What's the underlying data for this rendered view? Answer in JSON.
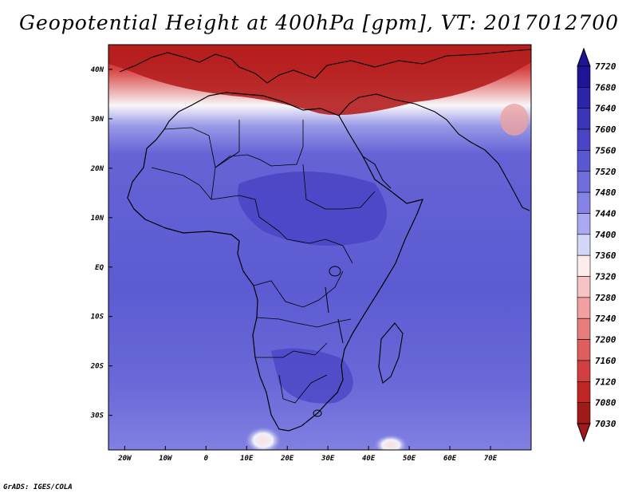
{
  "title": "Geopotential Height at 400hPa [gpm], VT: 2017012700",
  "credit": "GrADS: IGES/COLA",
  "map": {
    "lon_range": [
      -24,
      80
    ],
    "lat_range": [
      -37,
      45
    ],
    "x_ticks": [
      "20W",
      "10W",
      "0",
      "10E",
      "20E",
      "30E",
      "40E",
      "50E",
      "60E",
      "70E"
    ],
    "x_tick_values": [
      -20,
      -10,
      0,
      10,
      20,
      30,
      40,
      50,
      60,
      70
    ],
    "y_ticks": [
      "40N",
      "30N",
      "20N",
      "10N",
      "EQ",
      "10S",
      "20S",
      "30S"
    ],
    "y_tick_values": [
      40,
      30,
      20,
      10,
      0,
      -10,
      -20,
      -30
    ]
  },
  "colorbar": {
    "labels_top_to_bottom": [
      "7720",
      "7680",
      "7640",
      "7600",
      "7560",
      "7520",
      "7480",
      "7440",
      "7400",
      "7360",
      "7320",
      "7280",
      "7240",
      "7200",
      "7160",
      "7120",
      "7080",
      "7030"
    ],
    "colors_top_to_bottom": [
      "#1e1496",
      "#2c25a8",
      "#3b35b8",
      "#4b45c6",
      "#5a58d1",
      "#6e6ddb",
      "#8584e6",
      "#a8a9ee",
      "#d4d6f8",
      "#fcecec",
      "#f6c4c4",
      "#f0a0a0",
      "#e77e7e",
      "#de5e5e",
      "#d14040",
      "#c02626",
      "#a11a1a"
    ]
  },
  "legend_colors": {
    "deep_blue": "#4a44c4",
    "mid_blue": "#5c5bd2",
    "light_blue": "#9a9ae8",
    "white": "#f8f6f8",
    "light_red": "#eba3a3",
    "dark_red": "#b51e1e"
  }
}
